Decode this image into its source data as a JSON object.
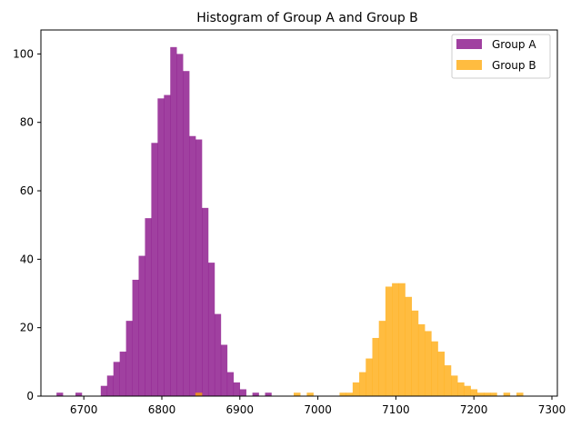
{
  "chart_data": {
    "type": "histogram",
    "title": "Histogram of Group A and Group B",
    "xlabel": "",
    "ylabel": "",
    "xlim": [
      6645,
      7307
    ],
    "ylim": [
      0,
      107
    ],
    "xticks": [
      6700,
      6800,
      6900,
      7000,
      7100,
      7200,
      7300
    ],
    "yticks": [
      0,
      20,
      40,
      60,
      80,
      100
    ],
    "grid": false,
    "legend_position": "top-right",
    "series": [
      {
        "name": "Group A",
        "color": "#800080",
        "opacity": 0.75,
        "bin_start": 6665,
        "bin_width": 8.1,
        "counts": [
          1,
          0,
          0,
          1,
          0,
          0,
          0,
          3,
          6,
          10,
          13,
          22,
          34,
          41,
          52,
          74,
          87,
          88,
          102,
          100,
          95,
          76,
          75,
          55,
          39,
          24,
          15,
          7,
          4,
          2,
          0,
          1,
          0,
          1
        ]
      },
      {
        "name": "Group B",
        "color": "#FFA500",
        "opacity": 0.75,
        "bin_start": 6843,
        "bin_width": 8.4,
        "counts": [
          1,
          0,
          0,
          0,
          0,
          0,
          0,
          0,
          0,
          0,
          0,
          0,
          0,
          0,
          0,
          1,
          0,
          1,
          0,
          0,
          0,
          0,
          1,
          1,
          4,
          7,
          11,
          17,
          22,
          32,
          33,
          33,
          29,
          25,
          21,
          19,
          16,
          13,
          9,
          6,
          4,
          3,
          2,
          1,
          1,
          1,
          0,
          1,
          0,
          1,
          0,
          0,
          0,
          0,
          0,
          0,
          0,
          0,
          0,
          0,
          0,
          0,
          0
        ]
      }
    ]
  }
}
